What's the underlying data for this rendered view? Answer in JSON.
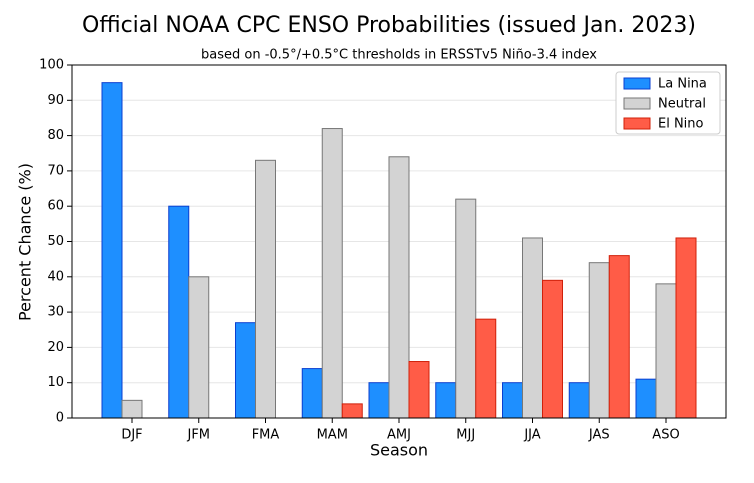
{
  "chart_data": {
    "type": "bar",
    "title": "Official NOAA CPC ENSO Probabilities (issued Jan. 2023)",
    "subtitle": "based on -0.5°/+0.5°C thresholds in ERSSTv5 Niño-3.4 index",
    "x_label": "Season",
    "y_label": "Percent Chance (%)",
    "categories": [
      "DJF",
      "JFM",
      "FMA",
      "MAM",
      "AMJ",
      "MJJ",
      "JJA",
      "JAS",
      "ASO"
    ],
    "series": [
      {
        "name": "La Nina",
        "color": "#1e8fff",
        "values": [
          95,
          60,
          27,
          14,
          10,
          10,
          10,
          10,
          11
        ]
      },
      {
        "name": "Neutral",
        "color": "#d3d3d3",
        "values": [
          5,
          40,
          73,
          82,
          74,
          62,
          51,
          44,
          38
        ]
      },
      {
        "name": "El Nino",
        "color": "#ff5c47",
        "values": [
          0,
          0,
          0,
          4,
          16,
          28,
          39,
          46,
          51
        ]
      }
    ],
    "ylim": [
      0,
      100
    ],
    "yticks": [
      0,
      10,
      20,
      30,
      40,
      50,
      60,
      70,
      80,
      90,
      100
    ],
    "grid": true,
    "legend": "upper right"
  }
}
